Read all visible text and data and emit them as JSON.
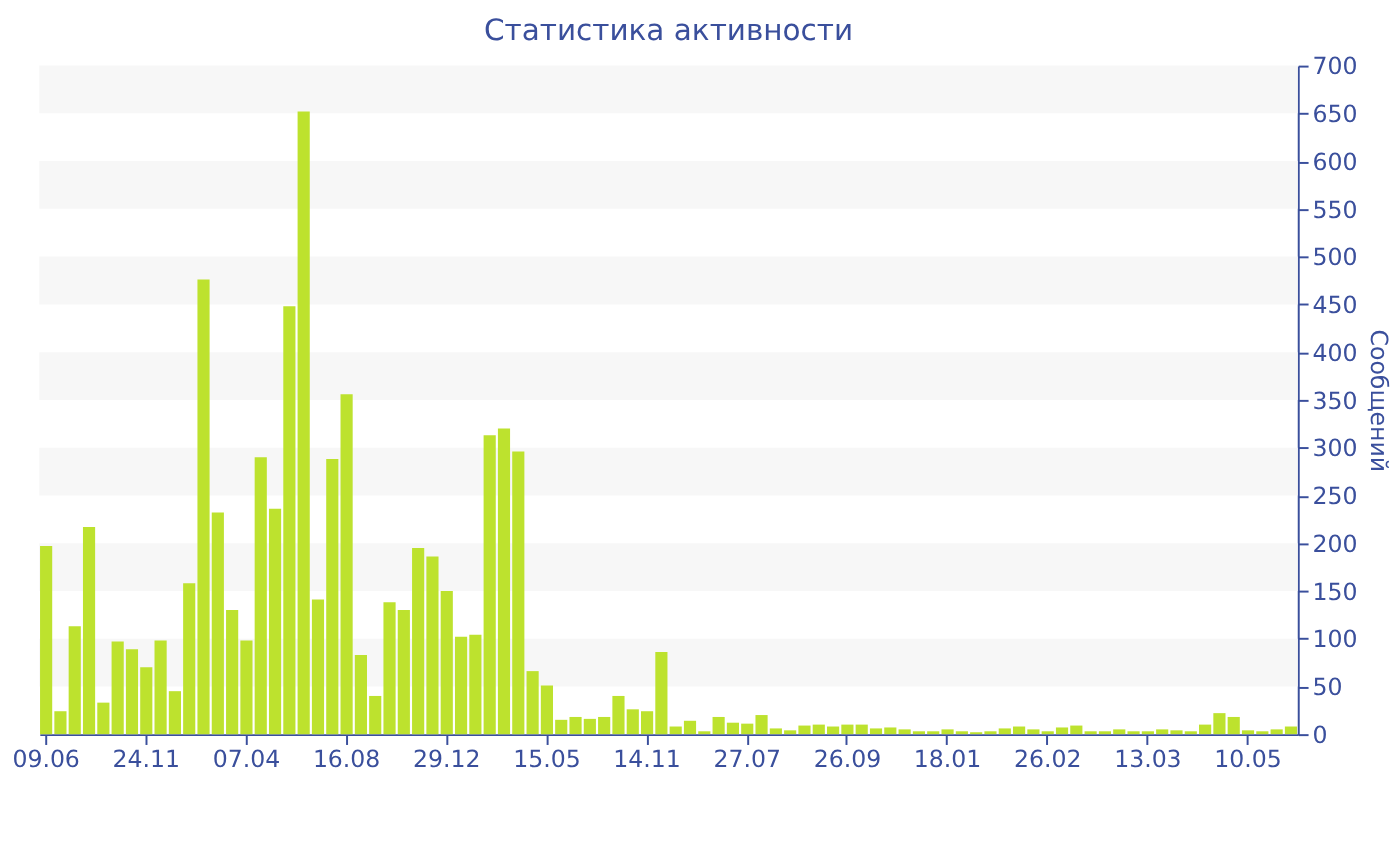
{
  "chart_data": {
    "type": "bar",
    "title": "Статистика активности",
    "ylabel": "Сообщений",
    "categories": [
      "09.06",
      null,
      null,
      null,
      null,
      null,
      null,
      "24.11",
      null,
      null,
      null,
      null,
      null,
      null,
      "07.04",
      null,
      null,
      null,
      null,
      null,
      null,
      "16.08",
      null,
      null,
      null,
      null,
      null,
      null,
      "29.12",
      null,
      null,
      null,
      null,
      null,
      null,
      "15.05",
      null,
      null,
      null,
      null,
      null,
      null,
      "14.11",
      null,
      null,
      null,
      null,
      null,
      null,
      "27.07",
      null,
      null,
      null,
      null,
      null,
      null,
      "26.09",
      null,
      null,
      null,
      null,
      null,
      null,
      "18.01",
      null,
      null,
      null,
      null,
      null,
      null,
      "26.02",
      null,
      null,
      null,
      null,
      null,
      null,
      "13.03",
      null,
      null,
      null,
      null,
      null,
      null,
      "10.05",
      null,
      null,
      null
    ],
    "values": [
      197,
      24,
      113,
      217,
      33,
      97,
      89,
      70,
      98,
      45,
      158,
      476,
      232,
      130,
      98,
      290,
      236,
      448,
      652,
      141,
      288,
      356,
      83,
      40,
      138,
      130,
      195,
      186,
      150,
      102,
      104,
      313,
      320,
      296,
      66,
      51,
      15,
      18,
      16,
      18,
      40,
      26,
      24,
      86,
      8,
      14,
      3,
      18,
      12,
      11,
      20,
      6,
      4,
      9,
      10,
      8,
      10,
      10,
      6,
      7,
      5,
      3,
      3,
      5,
      3,
      2,
      3,
      6,
      8,
      5,
      3,
      7,
      9,
      3,
      3,
      5,
      3,
      3,
      5,
      4,
      3,
      10,
      22,
      18,
      4,
      3,
      5,
      8
    ],
    "color": "#bde22e",
    "ylim": [
      0,
      700
    ],
    "yticks": [
      0,
      50,
      100,
      150,
      200,
      250,
      300,
      350,
      400,
      450,
      500,
      550,
      600,
      650,
      700
    ],
    "bands": [
      {
        "axis": "y",
        "from": 50,
        "to": 100,
        "color": "#f7f7f7"
      },
      {
        "axis": "y",
        "from": 150,
        "to": 200,
        "color": "#f7f7f7"
      },
      {
        "axis": "y",
        "from": 250,
        "to": 300,
        "color": "#f7f7f7"
      },
      {
        "axis": "y",
        "from": 350,
        "to": 400,
        "color": "#f7f7f7"
      },
      {
        "axis": "y",
        "from": 450,
        "to": 500,
        "color": "#f7f7f7"
      },
      {
        "axis": "y",
        "from": 550,
        "to": 600,
        "color": "#f7f7f7"
      },
      {
        "axis": "y",
        "from": 650,
        "to": 700,
        "color": "#f7f7f7"
      }
    ]
  }
}
